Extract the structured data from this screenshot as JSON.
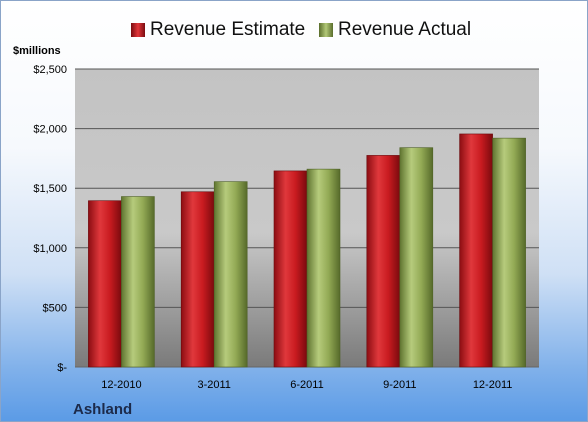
{
  "chart_data": {
    "type": "bar",
    "categories": [
      "12-2010",
      "3-2011",
      "6-2011",
      "9-2011",
      "12-2011"
    ],
    "series": [
      {
        "name": "Revenue Estimate",
        "values": [
          1395,
          1470,
          1645,
          1775,
          1955
        ],
        "color": "#c0161b"
      },
      {
        "name": "Revenue Actual",
        "values": [
          1430,
          1555,
          1660,
          1840,
          1920
        ],
        "color": "#8ea54e"
      }
    ],
    "ylabel": "$millions",
    "ylim": [
      0,
      2500
    ],
    "yticks": [
      0,
      500,
      1000,
      1500,
      2000,
      2500
    ],
    "ytick_labels": [
      "$-",
      "$500",
      "$1,000",
      "$1,500",
      "$2,000",
      "$2,500"
    ],
    "grid": true,
    "legend_position": "top",
    "footer": "Ashland"
  }
}
